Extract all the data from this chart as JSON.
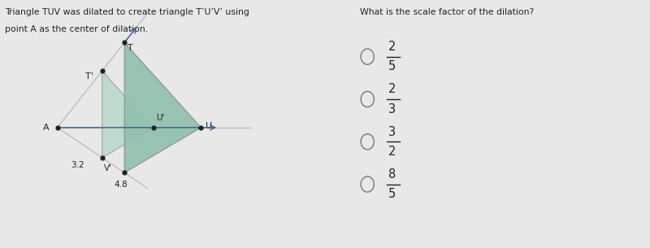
{
  "bg_color": "#e8e8e8",
  "left_text_line1": "Triangle TUV was dilated to create triangle T’U’V’ using",
  "left_text_line2": "point A as the center of dilation.",
  "right_question": "What is the scale factor of the dilation?",
  "choices": [
    {
      "num": "2",
      "den": "5"
    },
    {
      "num": "2",
      "den": "3"
    },
    {
      "num": "3",
      "den": "2"
    },
    {
      "num": "8",
      "den": "5"
    }
  ],
  "label_32": "3.2",
  "label_48": "4.8",
  "tri_fill_small": "#b8d8ca",
  "tri_fill_large": "#8fbfad",
  "line_color": "#bbbbbb",
  "point_color": "#222222",
  "arrow_color": "#3a5a8a",
  "text_color": "#222222"
}
